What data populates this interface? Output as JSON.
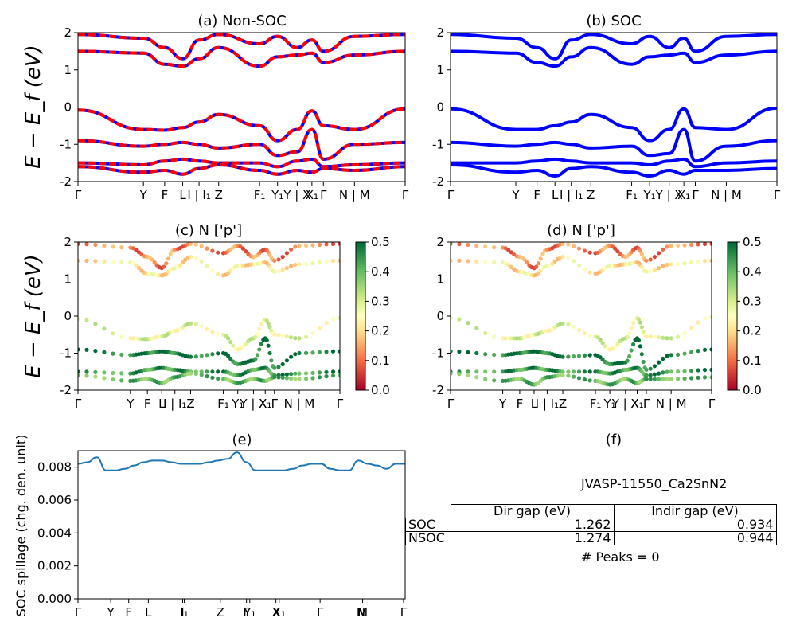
{
  "figure": {
    "ylabel_band": "E − E_f (eV)",
    "spillage_ylabel": "SOC spillage (chg. den. unit)",
    "colorbar_ticks": [
      "0.0",
      "0.1",
      "0.2",
      "0.3",
      "0.4",
      "0.5"
    ]
  },
  "panels": {
    "a": {
      "title": "(a) Non-SOC"
    },
    "b": {
      "title": "(b) SOC"
    },
    "c": {
      "title": "(c)  N ['p']"
    },
    "d": {
      "title": "(d) N ['p']"
    },
    "e": {
      "title": "(e)"
    },
    "f": {
      "title": "(f)"
    }
  },
  "band_kpath_labels": [
    "Γ",
    "Y",
    "F",
    "L",
    "I | I₁",
    "Z",
    "F₁",
    "Y₁",
    "Y | X",
    "X₁",
    "Γ",
    "N | M",
    "Γ"
  ],
  "spillage_kpath_labels": [
    "Γ",
    "Y",
    "F",
    "L",
    "I",
    "I₁",
    "Z",
    "F",
    "Y₁",
    "X",
    "X₁",
    "Γ",
    "N",
    "M",
    "Γ"
  ],
  "info": {
    "material": "JVASP-11550_Ca2SnN2",
    "table_header": [
      "Dir gap (eV)",
      "Indir gap (eV)"
    ],
    "rows": [
      {
        "label": "SOC",
        "dir": "1.262",
        "indir": "0.934"
      },
      {
        "label": "NSOC",
        "dir": "1.274",
        "indir": "0.944"
      }
    ],
    "peaks": "# Peaks = 0"
  },
  "chart_data": [
    {
      "type": "line",
      "title": "(a) Non-SOC",
      "ylabel": "E − E_f (eV)",
      "ylim": [
        -2,
        2
      ],
      "yticks": [
        -2,
        -1,
        0,
        1,
        2
      ],
      "x_ticks_labels": [
        "Γ",
        "Y",
        "F",
        "L",
        "I | I₁",
        "Z",
        "F₁",
        "Y₁",
        "Y | X",
        "X₁",
        "Γ",
        "N | M",
        "Γ"
      ],
      "series": [
        {
          "values": [
            -0.08,
            -0.6,
            -0.62,
            -0.55,
            -0.4,
            -0.2,
            -0.5,
            -0.9,
            -0.6,
            -0.1,
            -0.5,
            -0.6,
            -0.05
          ]
        },
        {
          "values": [
            -0.9,
            -1.05,
            -1.0,
            -0.95,
            -1.0,
            -1.1,
            -1.0,
            -1.3,
            -1.2,
            -0.6,
            -1.4,
            -1.0,
            -0.95
          ]
        },
        {
          "values": [
            -1.5,
            -1.55,
            -1.45,
            -1.4,
            -1.45,
            -1.5,
            -1.5,
            -1.6,
            -1.45,
            -1.4,
            -1.6,
            -1.55,
            -1.5
          ]
        },
        {
          "values": [
            -1.6,
            -1.75,
            -1.7,
            -1.8,
            -1.65,
            -1.55,
            -1.7,
            -1.8,
            -1.7,
            -1.75,
            -1.65,
            -1.7,
            -1.6
          ]
        },
        {
          "values": [
            1.5,
            1.45,
            1.15,
            1.1,
            1.3,
            1.6,
            1.1,
            1.35,
            1.4,
            1.45,
            1.2,
            1.4,
            1.5
          ]
        },
        {
          "values": [
            1.95,
            1.85,
            1.6,
            1.3,
            1.8,
            1.95,
            1.7,
            1.9,
            1.6,
            1.8,
            1.5,
            1.9,
            1.95
          ]
        }
      ]
    },
    {
      "type": "line",
      "title": "(b) SOC",
      "ylim": [
        -2,
        2
      ],
      "yticks": [
        -2,
        -1,
        0,
        1,
        2
      ],
      "series": [
        {
          "values": [
            -0.05,
            -0.6,
            -0.6,
            -0.5,
            -0.4,
            -0.2,
            -0.55,
            -0.9,
            -0.6,
            -0.05,
            -0.55,
            -0.6,
            -0.03
          ]
        },
        {
          "values": [
            -0.95,
            -1.05,
            -1.0,
            -0.95,
            -1.0,
            -1.1,
            -1.05,
            -1.3,
            -1.25,
            -0.6,
            -1.45,
            -1.05,
            -0.9
          ]
        },
        {
          "values": [
            -1.5,
            -1.5,
            -1.45,
            -1.4,
            -1.45,
            -1.5,
            -1.5,
            -1.55,
            -1.45,
            -1.4,
            -1.6,
            -1.5,
            -1.45
          ]
        },
        {
          "values": [
            -1.55,
            -1.75,
            -1.7,
            -1.85,
            -1.65,
            -1.6,
            -1.75,
            -1.85,
            -1.7,
            -1.8,
            -1.7,
            -1.7,
            -1.65
          ]
        },
        {
          "values": [
            1.5,
            1.45,
            1.2,
            1.1,
            1.35,
            1.6,
            1.15,
            1.35,
            1.4,
            1.45,
            1.2,
            1.4,
            1.5
          ]
        },
        {
          "values": [
            1.95,
            1.85,
            1.6,
            1.3,
            1.8,
            1.95,
            1.7,
            1.9,
            1.6,
            1.85,
            1.5,
            1.9,
            1.95
          ]
        }
      ]
    },
    {
      "type": "scatter",
      "title": "(c)  N ['p']",
      "ylim": [
        -2,
        2
      ],
      "colorbar_range": [
        0.0,
        0.5
      ],
      "series": [
        {
          "values": [
            -0.08,
            -0.6,
            -0.62,
            -0.55,
            -0.4,
            -0.2,
            -0.5,
            -0.9,
            -0.6,
            -0.1,
            -0.5,
            -0.6,
            -0.05
          ],
          "weight": 0.28
        },
        {
          "values": [
            -0.9,
            -1.05,
            -1.0,
            -0.95,
            -1.0,
            -1.1,
            -1.0,
            -1.3,
            -1.2,
            -0.6,
            -1.4,
            -1.0,
            -0.95
          ],
          "weight": 0.48
        },
        {
          "values": [
            -1.5,
            -1.55,
            -1.45,
            -1.4,
            -1.45,
            -1.5,
            -1.5,
            -1.6,
            -1.45,
            -1.4,
            -1.6,
            -1.55,
            -1.5
          ],
          "weight": 0.44
        },
        {
          "values": [
            -1.6,
            -1.75,
            -1.7,
            -1.8,
            -1.65,
            -1.55,
            -1.7,
            -1.8,
            -1.7,
            -1.75,
            -1.65,
            -1.7,
            -1.6
          ],
          "weight": 0.4
        },
        {
          "values": [
            1.5,
            1.45,
            1.15,
            1.1,
            1.3,
            1.6,
            1.1,
            1.35,
            1.4,
            1.45,
            1.2,
            1.4,
            1.5
          ],
          "weight": 0.22
        },
        {
          "values": [
            1.95,
            1.85,
            1.6,
            1.3,
            1.8,
            1.95,
            1.7,
            1.9,
            1.6,
            1.8,
            1.5,
            1.9,
            1.95
          ],
          "weight": 0.12
        }
      ]
    },
    {
      "type": "scatter",
      "title": "(d) N ['p']",
      "ylim": [
        -2,
        2
      ],
      "colorbar_range": [
        0.0,
        0.5
      ],
      "series": [
        {
          "values": [
            -0.05,
            -0.6,
            -0.6,
            -0.5,
            -0.4,
            -0.2,
            -0.55,
            -0.9,
            -0.6,
            -0.05,
            -0.55,
            -0.6,
            -0.03
          ],
          "weight": 0.28
        },
        {
          "values": [
            -0.95,
            -1.05,
            -1.0,
            -0.95,
            -1.0,
            -1.1,
            -1.05,
            -1.3,
            -1.25,
            -0.6,
            -1.45,
            -1.05,
            -0.9
          ],
          "weight": 0.48
        },
        {
          "values": [
            -1.5,
            -1.5,
            -1.45,
            -1.4,
            -1.45,
            -1.5,
            -1.5,
            -1.55,
            -1.45,
            -1.4,
            -1.6,
            -1.5,
            -1.45
          ],
          "weight": 0.44
        },
        {
          "values": [
            -1.55,
            -1.75,
            -1.7,
            -1.85,
            -1.65,
            -1.6,
            -1.75,
            -1.85,
            -1.7,
            -1.8,
            -1.7,
            -1.7,
            -1.65
          ],
          "weight": 0.4
        },
        {
          "values": [
            1.5,
            1.45,
            1.2,
            1.1,
            1.35,
            1.6,
            1.15,
            1.35,
            1.4,
            1.45,
            1.2,
            1.4,
            1.5
          ],
          "weight": 0.22
        },
        {
          "values": [
            1.95,
            1.85,
            1.6,
            1.3,
            1.8,
            1.95,
            1.7,
            1.9,
            1.6,
            1.85,
            1.5,
            1.9,
            1.95
          ],
          "weight": 0.12
        }
      ]
    },
    {
      "type": "line",
      "title": "(e)",
      "ylabel": "SOC spillage (chg. den. unit)",
      "ylim": [
        0,
        0.009
      ],
      "yticks": [
        0.0,
        0.002,
        0.004,
        0.006,
        0.008
      ],
      "ytick_labels": [
        "0.000",
        "0.002",
        "0.004",
        "0.006",
        "0.008"
      ],
      "color": "#1f77b4",
      "values": [
        0.0082,
        0.0083,
        0.0086,
        0.0078,
        0.0078,
        0.0079,
        0.0081,
        0.0083,
        0.0084,
        0.0084,
        0.0083,
        0.0082,
        0.0082,
        0.0082,
        0.0083,
        0.0084,
        0.0085,
        0.0089,
        0.0083,
        0.0078,
        0.0078,
        0.0078,
        0.0078,
        0.0079,
        0.0081,
        0.0082,
        0.0082,
        0.0079,
        0.0078,
        0.0078,
        0.0084,
        0.0082,
        0.0081,
        0.0079,
        0.0082,
        0.0082
      ]
    }
  ]
}
